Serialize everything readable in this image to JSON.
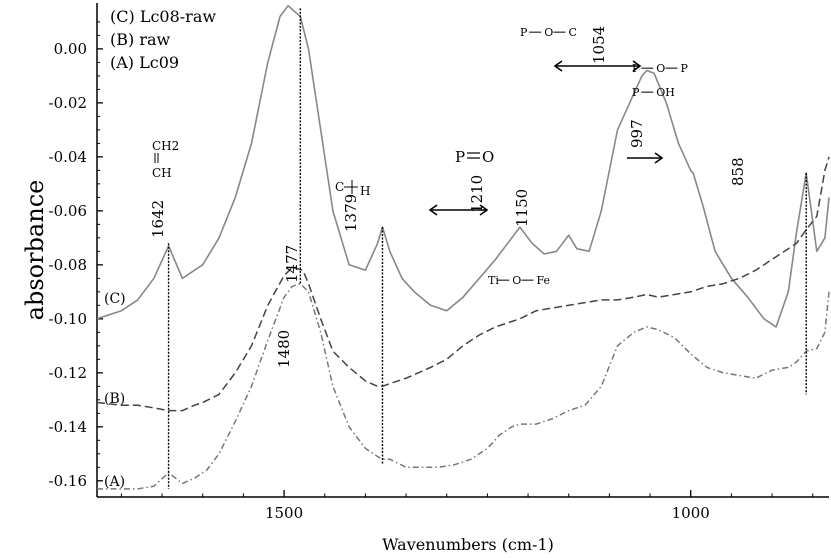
{
  "chart_data": {
    "type": "line",
    "xlabel": "Wavenumbers (cm-1)",
    "ylabel": "absorbance",
    "xlim": [
      1730,
      830
    ],
    "ylim": [
      -0.166,
      0.017
    ],
    "x_reversed": true,
    "x_ticks": [
      1500,
      1000
    ],
    "y_ticks": [
      0.0,
      -0.02,
      -0.04,
      -0.06,
      -0.08,
      -0.1,
      -0.12,
      -0.14,
      -0.16
    ],
    "y_tick_labels": [
      "0.00",
      "-0.02",
      "-0.04",
      "-0.06",
      "-0.08",
      "-0.10",
      "-0.12",
      "-0.14",
      "-0.16"
    ],
    "x_tick_labels": [
      "1500",
      "1000"
    ],
    "legend": {
      "position": "top-left",
      "entries": [
        "(C) Lc08-raw",
        "(B) raw",
        "(A) Lc09"
      ]
    },
    "series": [
      {
        "name": "(C)",
        "style": "solid",
        "color": "#888888",
        "x": [
          1730,
          1700,
          1680,
          1660,
          1642,
          1625,
          1600,
          1580,
          1560,
          1540,
          1520,
          1505,
          1495,
          1480,
          1470,
          1455,
          1440,
          1420,
          1400,
          1385,
          1379,
          1370,
          1355,
          1340,
          1320,
          1300,
          1280,
          1260,
          1240,
          1225,
          1210,
          1195,
          1180,
          1165,
          1150,
          1140,
          1125,
          1110,
          1090,
          1075,
          1060,
          1054,
          1045,
          1030,
          1015,
          1000,
          997,
          985,
          970,
          950,
          930,
          910,
          895,
          880,
          870,
          858,
          845,
          835,
          830
        ],
        "y": [
          -0.1,
          -0.097,
          -0.093,
          -0.085,
          -0.073,
          -0.085,
          -0.08,
          -0.07,
          -0.055,
          -0.035,
          -0.005,
          0.012,
          0.016,
          0.012,
          0.0,
          -0.03,
          -0.06,
          -0.08,
          -0.082,
          -0.072,
          -0.066,
          -0.075,
          -0.085,
          -0.09,
          -0.095,
          -0.097,
          -0.092,
          -0.085,
          -0.078,
          -0.072,
          -0.066,
          -0.072,
          -0.076,
          -0.075,
          -0.069,
          -0.074,
          -0.075,
          -0.06,
          -0.03,
          -0.02,
          -0.01,
          -0.008,
          -0.009,
          -0.02,
          -0.035,
          -0.045,
          -0.046,
          -0.058,
          -0.075,
          -0.085,
          -0.092,
          -0.1,
          -0.103,
          -0.09,
          -0.068,
          -0.046,
          -0.075,
          -0.07,
          -0.055
        ]
      },
      {
        "name": "(B)",
        "style": "dashed",
        "color": "#444444",
        "x": [
          1730,
          1700,
          1680,
          1660,
          1642,
          1625,
          1610,
          1600,
          1580,
          1560,
          1540,
          1520,
          1500,
          1490,
          1477,
          1470,
          1455,
          1440,
          1420,
          1400,
          1385,
          1379,
          1370,
          1350,
          1320,
          1300,
          1280,
          1260,
          1240,
          1220,
          1210,
          1190,
          1170,
          1150,
          1130,
          1110,
          1090,
          1070,
          1054,
          1040,
          1020,
          1000,
          980,
          960,
          940,
          920,
          900,
          880,
          870,
          858,
          845,
          835,
          830
        ],
        "y": [
          -0.131,
          -0.132,
          -0.132,
          -0.133,
          -0.134,
          -0.134,
          -0.132,
          -0.131,
          -0.128,
          -0.12,
          -0.11,
          -0.095,
          -0.084,
          -0.081,
          -0.082,
          -0.087,
          -0.1,
          -0.112,
          -0.118,
          -0.123,
          -0.125,
          -0.125,
          -0.124,
          -0.122,
          -0.118,
          -0.115,
          -0.11,
          -0.106,
          -0.103,
          -0.101,
          -0.1,
          -0.097,
          -0.096,
          -0.095,
          -0.094,
          -0.093,
          -0.093,
          -0.092,
          -0.091,
          -0.092,
          -0.091,
          -0.09,
          -0.088,
          -0.087,
          -0.085,
          -0.082,
          -0.078,
          -0.074,
          -0.072,
          -0.067,
          -0.062,
          -0.045,
          -0.04
        ]
      },
      {
        "name": "(A)",
        "style": "dashdot",
        "color": "#777777",
        "x": [
          1730,
          1700,
          1680,
          1660,
          1642,
          1625,
          1610,
          1595,
          1580,
          1560,
          1540,
          1520,
          1500,
          1490,
          1480,
          1470,
          1455,
          1440,
          1420,
          1400,
          1385,
          1379,
          1370,
          1350,
          1330,
          1310,
          1290,
          1270,
          1250,
          1235,
          1220,
          1210,
          1190,
          1170,
          1150,
          1130,
          1110,
          1090,
          1070,
          1054,
          1040,
          1020,
          1000,
          980,
          960,
          940,
          920,
          900,
          880,
          870,
          858,
          845,
          835,
          830
        ],
        "y": [
          -0.163,
          -0.163,
          -0.163,
          -0.162,
          -0.157,
          -0.161,
          -0.159,
          -0.156,
          -0.15,
          -0.138,
          -0.125,
          -0.108,
          -0.092,
          -0.088,
          -0.087,
          -0.09,
          -0.105,
          -0.125,
          -0.14,
          -0.148,
          -0.151,
          -0.152,
          -0.152,
          -0.155,
          -0.155,
          -0.155,
          -0.154,
          -0.152,
          -0.148,
          -0.143,
          -0.14,
          -0.139,
          -0.139,
          -0.137,
          -0.134,
          -0.132,
          -0.125,
          -0.11,
          -0.105,
          -0.103,
          -0.104,
          -0.107,
          -0.113,
          -0.118,
          -0.12,
          -0.121,
          -0.122,
          -0.119,
          -0.118,
          -0.116,
          -0.112,
          -0.111,
          -0.105,
          -0.09
        ]
      }
    ],
    "curve_labels": [
      {
        "text": "(C)",
        "series": "(C)"
      },
      {
        "text": "(B)",
        "series": "(B)"
      },
      {
        "text": "(A)",
        "series": "(A)"
      }
    ],
    "annotations": [
      {
        "text": "1642",
        "x": 1642
      },
      {
        "text": "1379",
        "x": 1379
      },
      {
        "text": "1210",
        "x": 1210
      },
      {
        "text": "1150",
        "x": 1150
      },
      {
        "text": "1054",
        "x": 1054
      },
      {
        "text": "997",
        "x": 997
      },
      {
        "text": "858",
        "x": 858
      },
      {
        "text": "1480",
        "x": 1480
      },
      {
        "text": "1477",
        "x": 1477
      }
    ],
    "chem_labels": {
      "ch2": "CH2",
      "ch": "CH",
      "ch_small_c": "C",
      "ch_small_h": "H",
      "po_double": "P=O",
      "p_o_c": "P-O-C",
      "p_o_p": "P-O-P",
      "p_oh": "P-OH",
      "ti_o_fe": "Ti-O-Fe"
    },
    "vertical_lines_x": [
      1642,
      1480,
      1379,
      858
    ]
  }
}
